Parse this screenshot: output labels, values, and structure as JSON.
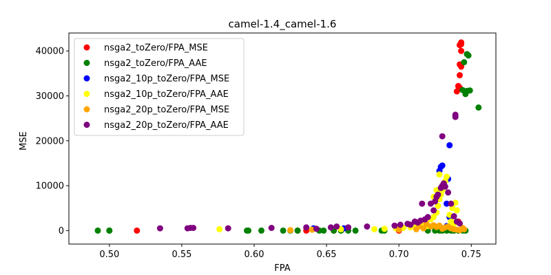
{
  "chart_data": {
    "type": "scatter",
    "title": "camel-1.4_camel-1.6",
    "xlabel": "FPA",
    "ylabel": "MSE",
    "xlim": [
      0.472,
      0.767
    ],
    "ylim": [
      -3000,
      44000
    ],
    "xticks": [
      0.5,
      0.55,
      0.6,
      0.65,
      0.7,
      0.75
    ],
    "xtick_labels": [
      "0.50",
      "0.55",
      "0.60",
      "0.65",
      "0.70",
      "0.75"
    ],
    "yticks": [
      0,
      10000,
      20000,
      30000,
      40000
    ],
    "ytick_labels": [
      "0",
      "10000",
      "20000",
      "30000",
      "40000"
    ],
    "grid": false,
    "legend_position": "top-left",
    "series": [
      {
        "name": "nsga2_toZero/FPA_MSE",
        "color": "#ff0000",
        "points": [
          [
            0.519,
            0
          ],
          [
            0.63,
            0
          ],
          [
            0.636,
            0
          ],
          [
            0.655,
            0
          ],
          [
            0.7,
            0
          ],
          [
            0.741,
            2000
          ],
          [
            0.74,
            31000
          ],
          [
            0.742,
            31800
          ],
          [
            0.741,
            32200
          ],
          [
            0.742,
            34600
          ],
          [
            0.743,
            36500
          ],
          [
            0.742,
            37000
          ],
          [
            0.743,
            40000
          ],
          [
            0.743,
            41500
          ],
          [
            0.743,
            41900
          ],
          [
            0.742,
            41300
          ]
        ]
      },
      {
        "name": "nsga2_toZero/FPA_AAE",
        "color": "#008000",
        "points": [
          [
            0.492,
            0
          ],
          [
            0.5,
            0
          ],
          [
            0.5,
            0
          ],
          [
            0.595,
            0
          ],
          [
            0.596,
            0
          ],
          [
            0.605,
            0
          ],
          [
            0.62,
            0
          ],
          [
            0.625,
            0
          ],
          [
            0.63,
            0
          ],
          [
            0.645,
            0
          ],
          [
            0.648,
            0
          ],
          [
            0.655,
            0
          ],
          [
            0.66,
            0
          ],
          [
            0.665,
            0
          ],
          [
            0.67,
            0
          ],
          [
            0.688,
            0
          ],
          [
            0.69,
            0
          ],
          [
            0.72,
            0
          ],
          [
            0.725,
            0
          ],
          [
            0.728,
            0
          ],
          [
            0.733,
            0
          ],
          [
            0.736,
            0
          ],
          [
            0.738,
            0
          ],
          [
            0.741,
            0
          ],
          [
            0.744,
            0
          ],
          [
            0.746,
            0
          ],
          [
            0.744,
            31300
          ],
          [
            0.746,
            30400
          ],
          [
            0.747,
            31100
          ],
          [
            0.749,
            31200
          ],
          [
            0.745,
            37500
          ],
          [
            0.748,
            39000
          ],
          [
            0.747,
            39300
          ],
          [
            0.755,
            27400
          ],
          [
            0.73,
            0
          ]
        ]
      },
      {
        "name": "nsga2_10p_toZero/FPA_MSE",
        "color": "#0000ff",
        "points": [
          [
            0.641,
            500
          ],
          [
            0.662,
            500
          ],
          [
            0.73,
            500
          ],
          [
            0.733,
            1000
          ],
          [
            0.735,
            3000
          ],
          [
            0.733,
            6000
          ],
          [
            0.734,
            11500
          ],
          [
            0.728,
            13300
          ],
          [
            0.729,
            14200
          ],
          [
            0.73,
            14500
          ],
          [
            0.735,
            19000
          ]
        ]
      },
      {
        "name": "nsga2_10p_toZero/FPA_AAE",
        "color": "#ffff00",
        "points": [
          [
            0.576,
            300
          ],
          [
            0.64,
            200
          ],
          [
            0.66,
            300
          ],
          [
            0.683,
            300
          ],
          [
            0.69,
            400
          ],
          [
            0.698,
            500
          ],
          [
            0.703,
            600
          ],
          [
            0.708,
            700
          ],
          [
            0.712,
            900
          ],
          [
            0.715,
            1200
          ],
          [
            0.718,
            1600
          ],
          [
            0.72,
            1000
          ],
          [
            0.722,
            2500
          ],
          [
            0.724,
            3000
          ],
          [
            0.726,
            4000
          ],
          [
            0.727,
            5500
          ],
          [
            0.728,
            7000
          ],
          [
            0.729,
            8000
          ],
          [
            0.73,
            9000
          ],
          [
            0.731,
            10000
          ],
          [
            0.732,
            11000
          ],
          [
            0.733,
            12000
          ],
          [
            0.735,
            3500
          ],
          [
            0.737,
            5000
          ],
          [
            0.739,
            6200
          ],
          [
            0.74,
            4500
          ],
          [
            0.728,
            12500
          ],
          [
            0.726,
            9000
          ],
          [
            0.724,
            7500
          ],
          [
            0.736,
            2000
          ],
          [
            0.738,
            1500
          ]
        ]
      },
      {
        "name": "nsga2_20p_toZero/FPA_MSE",
        "color": "#ffa500",
        "points": [
          [
            0.625,
            100
          ],
          [
            0.64,
            200
          ],
          [
            0.7,
            200
          ],
          [
            0.712,
            300
          ],
          [
            0.714,
            1000
          ],
          [
            0.717,
            500
          ],
          [
            0.719,
            1500
          ],
          [
            0.722,
            900
          ],
          [
            0.724,
            1200
          ],
          [
            0.726,
            800
          ],
          [
            0.728,
            1100
          ],
          [
            0.73,
            400
          ],
          [
            0.732,
            700
          ],
          [
            0.734,
            900
          ],
          [
            0.736,
            500
          ],
          [
            0.738,
            300
          ],
          [
            0.74,
            200
          ],
          [
            0.742,
            100
          ],
          [
            0.744,
            600
          ],
          [
            0.745,
            300
          ]
        ]
      },
      {
        "name": "nsga2_20p_toZero/FPA_AAE",
        "color": "#800080",
        "points": [
          [
            0.535,
            500
          ],
          [
            0.554,
            500
          ],
          [
            0.556,
            600
          ],
          [
            0.558,
            600
          ],
          [
            0.582,
            500
          ],
          [
            0.612,
            600
          ],
          [
            0.636,
            700
          ],
          [
            0.643,
            400
          ],
          [
            0.653,
            700
          ],
          [
            0.657,
            900
          ],
          [
            0.665,
            700
          ],
          [
            0.678,
            900
          ],
          [
            0.697,
            1100
          ],
          [
            0.701,
            1300
          ],
          [
            0.706,
            1500
          ],
          [
            0.708,
            1300
          ],
          [
            0.711,
            2000
          ],
          [
            0.713,
            1800
          ],
          [
            0.715,
            2200
          ],
          [
            0.718,
            2500
          ],
          [
            0.72,
            3000
          ],
          [
            0.722,
            6000
          ],
          [
            0.725,
            6500
          ],
          [
            0.726,
            7500
          ],
          [
            0.727,
            8000
          ],
          [
            0.729,
            9500
          ],
          [
            0.73,
            10000
          ],
          [
            0.731,
            10500
          ],
          [
            0.732,
            9800
          ],
          [
            0.734,
            8500
          ],
          [
            0.736,
            6000
          ],
          [
            0.738,
            3200
          ],
          [
            0.74,
            2000
          ],
          [
            0.742,
            1600
          ],
          [
            0.73,
            21000
          ],
          [
            0.739,
            25300
          ],
          [
            0.739,
            25800
          ],
          [
            0.716,
            6000
          ],
          [
            0.724,
            4500
          ]
        ]
      }
    ]
  }
}
